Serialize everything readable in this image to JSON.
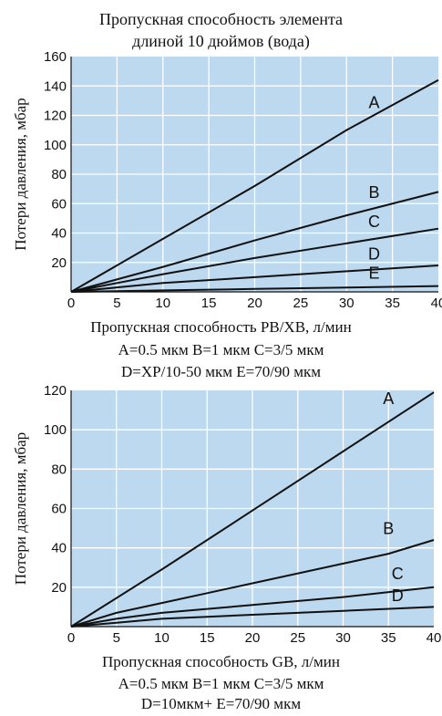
{
  "chart_data": [
    {
      "type": "line",
      "title_lines": [
        "Пропускная способность элемента",
        "длиной 10 дюймов (вода)"
      ],
      "xlabel": "Пропускная способность PB/XB, л/мин",
      "ylabel": "Потери давления, мбар",
      "caption_lines": [
        "A=0.5 мкм B=1 мкм C=3/5 мкм",
        "D=XP/10-50  мкм E=70/90 мкм"
      ],
      "xlim": [
        0,
        40
      ],
      "ylim": [
        0,
        160
      ],
      "x_ticks": [
        0,
        5,
        10,
        15,
        20,
        25,
        30,
        35,
        40
      ],
      "y_ticks": [
        20,
        40,
        60,
        80,
        100,
        120,
        140,
        160
      ],
      "grid": true,
      "background": "#bcd9ef",
      "series": [
        {
          "name": "A",
          "label_at": [
            33,
            125
          ],
          "points": [
            [
              0,
              0
            ],
            [
              10,
              36
            ],
            [
              20,
              72
            ],
            [
              30,
              110
            ],
            [
              40,
              144
            ]
          ]
        },
        {
          "name": "B",
          "label_at": [
            33,
            64
          ],
          "points": [
            [
              0,
              0
            ],
            [
              10,
              17
            ],
            [
              20,
              35
            ],
            [
              30,
              52
            ],
            [
              40,
              68
            ]
          ]
        },
        {
          "name": "C",
          "label_at": [
            33,
            44
          ],
          "points": [
            [
              0,
              0
            ],
            [
              5,
              6
            ],
            [
              10,
              12
            ],
            [
              20,
              23
            ],
            [
              30,
              33
            ],
            [
              40,
              43
            ]
          ]
        },
        {
          "name": "D",
          "label_at": [
            33,
            22
          ],
          "points": [
            [
              0,
              0
            ],
            [
              10,
              6
            ],
            [
              20,
              10
            ],
            [
              30,
              14
            ],
            [
              40,
              18
            ]
          ]
        },
        {
          "name": "E",
          "label_at": [
            33,
            9
          ],
          "points": [
            [
              0,
              0
            ],
            [
              10,
              1
            ],
            [
              20,
              2
            ],
            [
              30,
              3
            ],
            [
              40,
              4
            ]
          ]
        }
      ]
    },
    {
      "type": "line",
      "xlabel": "Пропускная способность GB, л/мин",
      "ylabel": "Потери давления, мбар",
      "caption_lines": [
        "A=0.5 мкм B=1 мкм C=3/5 мкм",
        "D=10мкм+  E=70/90 мкм"
      ],
      "xlim": [
        0,
        40
      ],
      "ylim": [
        0,
        120
      ],
      "x_ticks": [
        0,
        5,
        10,
        15,
        20,
        25,
        30,
        35,
        40
      ],
      "y_ticks": [
        20,
        40,
        60,
        80,
        100,
        120
      ],
      "grid": true,
      "background": "#bcd9ef",
      "series": [
        {
          "name": "A",
          "label_at": [
            35,
            113
          ],
          "points": [
            [
              0,
              0
            ],
            [
              10,
              29
            ],
            [
              20,
              59
            ],
            [
              30,
              89
            ],
            [
              40,
              119
            ]
          ]
        },
        {
          "name": "B",
          "label_at": [
            35,
            47
          ],
          "points": [
            [
              0,
              0
            ],
            [
              5,
              7
            ],
            [
              10,
              12
            ],
            [
              15,
              17
            ],
            [
              20,
              22
            ],
            [
              30,
              32
            ],
            [
              35,
              37
            ],
            [
              40,
              44
            ]
          ]
        },
        {
          "name": "C",
          "label_at": [
            36,
            24
          ],
          "points": [
            [
              0,
              0
            ],
            [
              5,
              4
            ],
            [
              10,
              7
            ],
            [
              15,
              9
            ],
            [
              20,
              11
            ],
            [
              30,
              15
            ],
            [
              40,
              20
            ]
          ]
        },
        {
          "name": "D",
          "label_at": [
            36,
            13
          ],
          "points": [
            [
              0,
              0
            ],
            [
              5,
              2
            ],
            [
              10,
              4
            ],
            [
              15,
              5
            ],
            [
              20,
              6
            ],
            [
              30,
              8
            ],
            [
              40,
              10
            ]
          ]
        }
      ]
    }
  ]
}
